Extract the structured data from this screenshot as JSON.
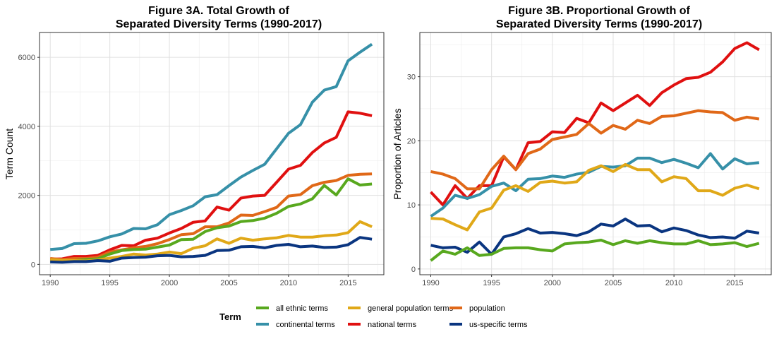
{
  "chart_data": [
    {
      "type": "line",
      "title_line1": "Figure 3A. Total Growth of",
      "title_line2": "Separated Diversity Terms (1990-2017)",
      "xlabel": "",
      "ylabel": "Term Count",
      "xlim": [
        1990,
        2017
      ],
      "ylim": [
        0,
        6500
      ],
      "xticks": [
        1990,
        1995,
        2000,
        2005,
        2010,
        2015
      ],
      "yticks": [
        0,
        2000,
        4000,
        6000
      ],
      "grid": true,
      "x": [
        1990,
        1991,
        1992,
        1993,
        1994,
        1995,
        1996,
        1997,
        1998,
        1999,
        2000,
        2001,
        2002,
        2003,
        2004,
        2005,
        2006,
        2007,
        2008,
        2009,
        2010,
        2011,
        2012,
        2013,
        2014,
        2015,
        2016,
        2017
      ],
      "series": [
        {
          "name": "continental terms",
          "color": "#3690a8",
          "values": [
            430,
            460,
            600,
            610,
            680,
            800,
            880,
            1040,
            1030,
            1150,
            1440,
            1560,
            1700,
            1960,
            2020,
            2280,
            2530,
            2720,
            2900,
            3350,
            3800,
            4050,
            4700,
            5050,
            5150,
            5900,
            6150,
            6380
          ]
        },
        {
          "name": "national terms",
          "color": "#e01010",
          "values": [
            150,
            160,
            230,
            230,
            260,
            420,
            550,
            540,
            700,
            760,
            910,
            1040,
            1220,
            1260,
            1660,
            1570,
            1920,
            1980,
            2000,
            2380,
            2760,
            2870,
            3240,
            3520,
            3680,
            4420,
            4380,
            4310
          ]
        },
        {
          "name": "population",
          "color": "#e06818",
          "values": [
            170,
            140,
            170,
            170,
            210,
            360,
            420,
            480,
            520,
            600,
            720,
            860,
            890,
            1090,
            1090,
            1200,
            1430,
            1420,
            1530,
            1650,
            1980,
            2020,
            2280,
            2380,
            2430,
            2580,
            2610,
            2620
          ]
        },
        {
          "name": "all ethnic terms",
          "color": "#58a81e",
          "values": [
            100,
            90,
            110,
            140,
            160,
            300,
            400,
            430,
            440,
            500,
            560,
            720,
            730,
            950,
            1060,
            1110,
            1240,
            1270,
            1340,
            1480,
            1680,
            1750,
            1900,
            2290,
            2010,
            2480,
            2300,
            2330
          ]
        },
        {
          "name": "general population terms",
          "color": "#e0a818",
          "values": [
            140,
            120,
            110,
            100,
            130,
            180,
            230,
            300,
            270,
            300,
            360,
            310,
            470,
            540,
            740,
            610,
            760,
            700,
            740,
            770,
            840,
            790,
            790,
            830,
            850,
            920,
            1240,
            1090
          ]
        },
        {
          "name": "us-specific terms",
          "color": "#0a3580",
          "values": [
            70,
            60,
            80,
            80,
            110,
            90,
            180,
            200,
            210,
            250,
            260,
            220,
            230,
            260,
            400,
            410,
            510,
            520,
            480,
            550,
            580,
            510,
            530,
            490,
            500,
            570,
            780,
            730
          ]
        }
      ]
    },
    {
      "type": "line",
      "title_line1": "Figure 3B. Proportional Growth of",
      "title_line2": "Separated Diversity Terms (1990-2017)",
      "xlabel": "",
      "ylabel": "Proportion of Articles",
      "xlim": [
        1990,
        2017
      ],
      "ylim": [
        0,
        37
      ],
      "xticks": [
        1990,
        1995,
        2000,
        2005,
        2010,
        2015
      ],
      "yticks": [
        0,
        10,
        20,
        30
      ],
      "grid": true,
      "x": [
        1990,
        1991,
        1992,
        1993,
        1994,
        1995,
        1996,
        1997,
        1998,
        1999,
        2000,
        2001,
        2002,
        2003,
        2004,
        2005,
        2006,
        2007,
        2008,
        2009,
        2010,
        2011,
        2012,
        2013,
        2014,
        2015,
        2016,
        2017
      ],
      "series": [
        {
          "name": "national terms",
          "color": "#e01010",
          "values": [
            12.0,
            10.0,
            13.0,
            11.0,
            13.0,
            13.0,
            17.5,
            15.5,
            19.7,
            19.9,
            21.4,
            21.3,
            23.5,
            22.8,
            25.9,
            24.7,
            25.9,
            27.1,
            25.5,
            27.5,
            28.7,
            29.7,
            29.9,
            30.7,
            32.3,
            34.4,
            35.3,
            34.2
          ]
        },
        {
          "name": "population",
          "color": "#e06818",
          "values": [
            15.2,
            14.8,
            14.1,
            12.5,
            12.5,
            15.5,
            17.6,
            15.5,
            18.0,
            18.7,
            20.2,
            20.6,
            21.0,
            22.7,
            21.2,
            22.4,
            21.8,
            23.2,
            22.7,
            23.8,
            23.9,
            24.3,
            24.7,
            24.5,
            24.4,
            23.2,
            23.7,
            23.4
          ]
        },
        {
          "name": "continental terms",
          "color": "#3690a8",
          "values": [
            8.2,
            9.5,
            11.5,
            11.0,
            11.6,
            12.9,
            13.4,
            12.2,
            14.0,
            14.1,
            14.5,
            14.3,
            14.8,
            15.1,
            16.0,
            15.9,
            16.1,
            17.3,
            17.3,
            16.6,
            17.1,
            16.5,
            15.8,
            18.0,
            15.6,
            17.2,
            16.4,
            16.6
          ]
        },
        {
          "name": "general population terms",
          "color": "#e0a818",
          "values": [
            7.9,
            7.8,
            6.9,
            6.1,
            8.9,
            9.5,
            12.3,
            13.0,
            12.1,
            13.5,
            13.7,
            13.4,
            13.6,
            15.4,
            16.1,
            15.2,
            16.3,
            15.5,
            15.5,
            13.6,
            14.4,
            14.1,
            12.2,
            12.2,
            11.5,
            12.6,
            13.1,
            12.5
          ]
        },
        {
          "name": "us-specific terms",
          "color": "#0a3580",
          "values": [
            3.7,
            3.3,
            3.4,
            2.6,
            4.2,
            2.3,
            5.0,
            5.5,
            6.3,
            5.6,
            5.7,
            5.5,
            5.2,
            5.8,
            7.0,
            6.7,
            7.8,
            6.7,
            6.8,
            5.8,
            6.4,
            6.0,
            5.3,
            4.9,
            5.0,
            4.8,
            5.9,
            5.6
          ]
        },
        {
          "name": "all ethnic terms",
          "color": "#58a81e",
          "values": [
            1.3,
            2.8,
            2.3,
            3.3,
            2.1,
            2.3,
            3.2,
            3.3,
            3.3,
            3.0,
            2.8,
            3.9,
            4.1,
            4.2,
            4.5,
            3.8,
            4.4,
            4.0,
            4.4,
            4.1,
            3.9,
            3.9,
            4.4,
            3.8,
            3.9,
            4.1,
            3.5,
            4.0
          ]
        }
      ]
    }
  ],
  "legend": {
    "title": "Term",
    "placement": "bottom",
    "items": [
      {
        "label": "all ethnic terms",
        "color": "#58a81e"
      },
      {
        "label": "general population terms",
        "color": "#e0a818"
      },
      {
        "label": "population",
        "color": "#e06818"
      },
      {
        "label": "continental terms",
        "color": "#3690a8"
      },
      {
        "label": "national terms",
        "color": "#e01010"
      },
      {
        "label": "us-specific terms",
        "color": "#0a3580"
      }
    ]
  }
}
